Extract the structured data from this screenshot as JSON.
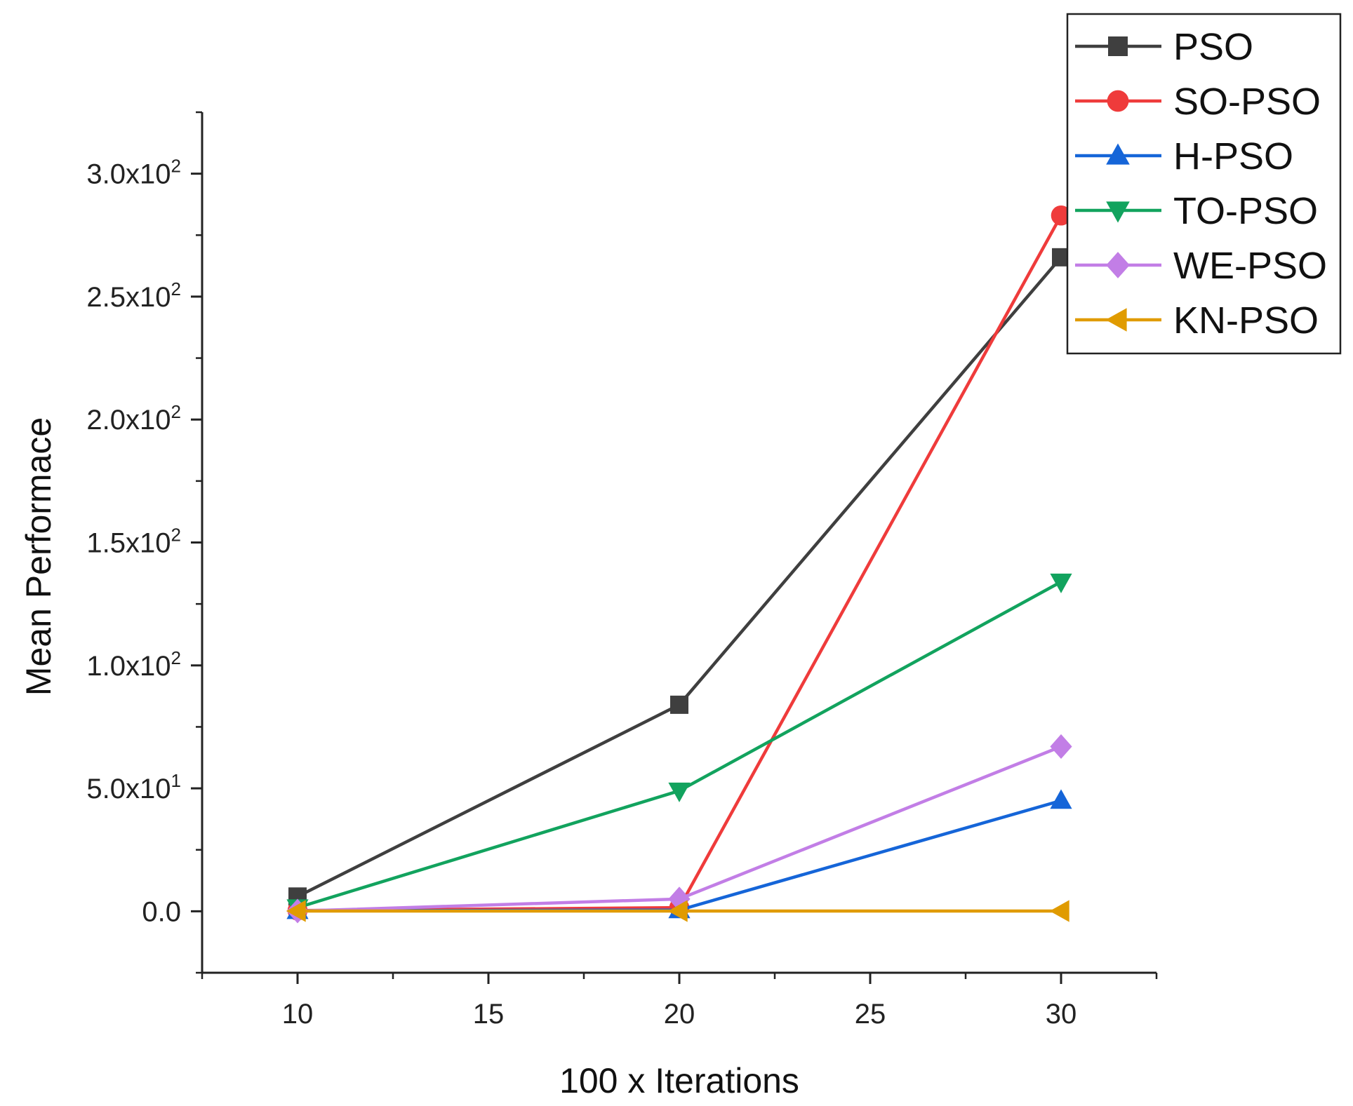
{
  "chart_data": {
    "type": "line",
    "title": "",
    "xlabel": "100 x Iterations",
    "ylabel": "Mean Performace",
    "x": [
      10,
      20,
      30
    ],
    "xlim": [
      7.5,
      32.5
    ],
    "ylim": [
      -25,
      325
    ],
    "x_ticks": [
      10,
      15,
      20,
      25,
      30
    ],
    "x_tick_labels": [
      "10",
      "15",
      "20",
      "25",
      "30"
    ],
    "y_ticks": [
      0,
      50,
      100,
      150,
      200,
      250,
      300
    ],
    "y_tick_labels": [
      {
        "mantissa": "0.0",
        "exp": ""
      },
      {
        "mantissa": "5.0x10",
        "exp": "1"
      },
      {
        "mantissa": "1.0x10",
        "exp": "2"
      },
      {
        "mantissa": "1.5x10",
        "exp": "2"
      },
      {
        "mantissa": "2.0x10",
        "exp": "2"
      },
      {
        "mantissa": "2.5x10",
        "exp": "2"
      },
      {
        "mantissa": "3.0x10",
        "exp": "2"
      }
    ],
    "legend_position": "top-right",
    "series": [
      {
        "name": "PSO",
        "color": "#3f3f3f",
        "marker": "square",
        "values": [
          6,
          84,
          266
        ]
      },
      {
        "name": "SO-PSO",
        "color": "#ef3b3b",
        "marker": "circle",
        "values": [
          0.3,
          1.5,
          283
        ]
      },
      {
        "name": "H-PSO",
        "color": "#1565d8",
        "marker": "triangle-up",
        "values": [
          0.2,
          0.5,
          45
        ]
      },
      {
        "name": "TO-PSO",
        "color": "#12a35e",
        "marker": "triangle-down",
        "values": [
          1.5,
          49,
          134
        ]
      },
      {
        "name": "WE-PSO",
        "color": "#c27ee6",
        "marker": "diamond",
        "values": [
          0.1,
          5,
          67
        ]
      },
      {
        "name": "KN-PSO",
        "color": "#e09b00",
        "marker": "triangle-left",
        "values": [
          0.1,
          0.1,
          0.1
        ]
      }
    ]
  }
}
